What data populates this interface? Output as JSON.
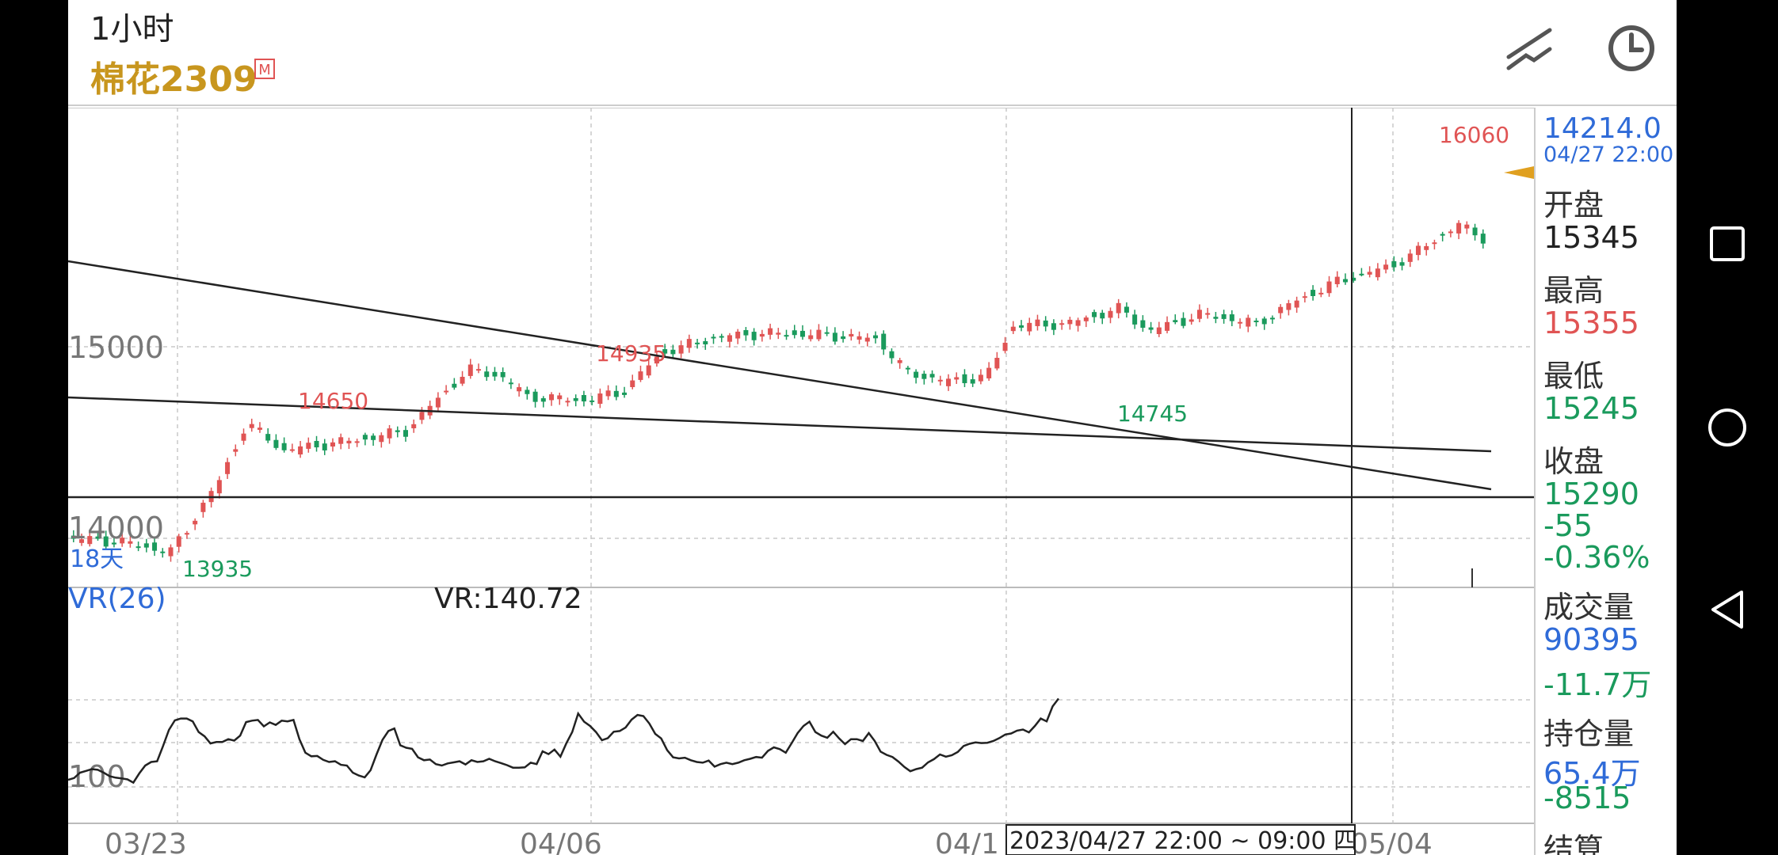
{
  "header": {
    "period": "1小时",
    "instrument": "棉花2309",
    "badge": "M",
    "icons": [
      "draw-line-icon",
      "clock-icon"
    ]
  },
  "chart": {
    "y_ticks": [
      "15000",
      "14000",
      "100"
    ],
    "x_ticks": [
      "03/23",
      "04/06",
      "04/1",
      "05/04"
    ],
    "labels": {
      "high_0": "14650",
      "high_1": "14935",
      "low_0": "13935",
      "low_1": "14745",
      "high_max": "16060",
      "days": "18天"
    },
    "indicator_name": "VR(26)",
    "indicator_value": "VR:140.72",
    "crosshair_time": "2023/04/27 22:00 ~ 09:00 四",
    "colors": {
      "up": "#e05454",
      "down": "#1a9a5c",
      "blue": "#2f6bd8",
      "line": "#222222",
      "marker": "#e0a020"
    }
  },
  "chart_data": {
    "type": "candlestick",
    "series": [
      {
        "name": "VR(26)",
        "values": [
          120,
          125,
          140,
          145,
          150,
          148,
          140,
          130,
          126,
          124,
          121,
          112,
          138,
          160,
          170,
          172,
          215,
          260,
          287,
          292,
          292,
          284,
          254,
          242,
          222,
          226,
          226,
          234,
          230,
          244,
          282,
          286,
          288,
          270,
          281,
          274,
          286,
          284,
          288,
          234,
          196,
          186,
          187,
          176,
          170,
          172,
          162,
          160,
          140,
          132,
          127,
          147,
          191,
          232,
          257,
          264,
          217,
          210,
          207,
          183,
          175,
          177,
          164,
          160,
          166,
          169,
          172,
          163,
          175,
          170,
          172,
          179,
          172,
          167,
          161,
          154,
          154,
          155,
          168,
          164,
          200,
          192,
          205,
          185,
          222,
          254,
          306,
          283,
          271,
          254,
          231,
          237,
          255,
          257,
          267,
          289,
          302,
          299,
          278,
          249,
          236,
          203,
          183,
          180,
          182,
          175,
          170,
          168,
          174,
          157,
          164,
          168,
          164,
          168,
          175,
          179,
          184,
          182,
          201,
          211,
          206,
          196,
          223,
          251,
          271,
          283,
          254,
          244,
          238,
          255,
          236,
          220,
          234,
          234,
          229,
          251,
          229,
          199,
          190,
          184,
          171,
          156,
          144,
          150,
          154,
          169,
          178,
          191,
          185,
          189,
          198,
          215,
          221,
          225,
          223,
          224,
          229,
          237,
          247,
          250,
          258,
          261,
          253,
          271,
          292,
          284,
          326,
          348
        ]
      }
    ]
  },
  "side": {
    "price": "14214.0",
    "time": "04/27 22:00",
    "open_label": "开盘",
    "open": "15345",
    "high_label": "最高",
    "high": "15355",
    "low_label": "最低",
    "low": "15245",
    "close_label": "收盘",
    "close": "15290",
    "change": "-55",
    "change_pct": "-0.36%",
    "volume_label": "成交量",
    "volume": "90395",
    "volume_change": "-11.7万",
    "oi_label": "持仓量",
    "oi": "65.4万",
    "oi_change": "-8515",
    "settle_label": "结算"
  },
  "nav": [
    "square-icon",
    "circle-icon",
    "triangle-icon"
  ]
}
